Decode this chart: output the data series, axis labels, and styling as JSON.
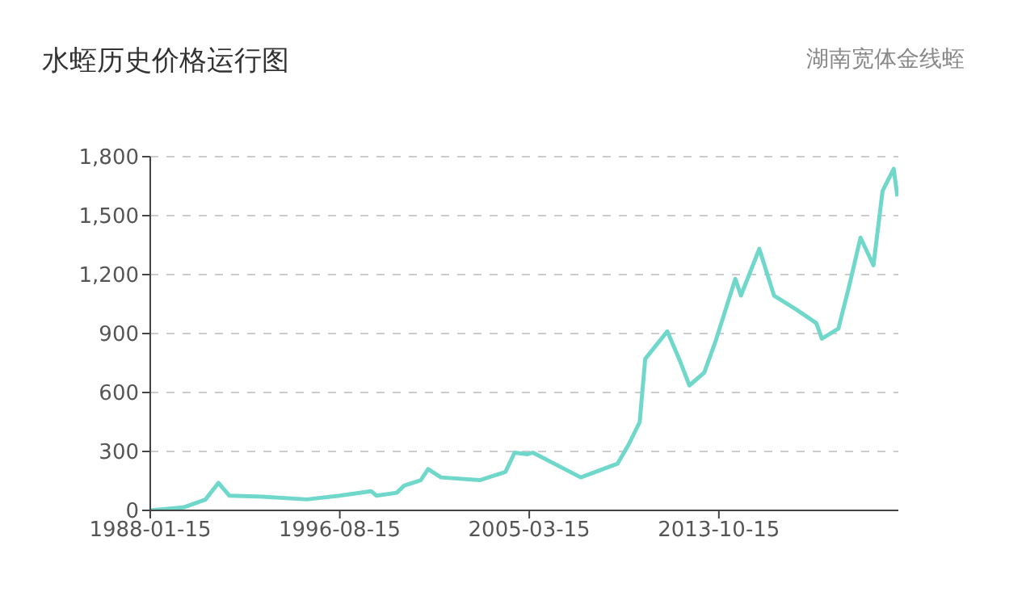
{
  "chart_data": {
    "type": "line",
    "title": "水蛭历史价格运行图",
    "subtitle": "湖南宽体金线蛭",
    "x": [
      "1988-01-15",
      "1989-07",
      "1990-07",
      "1991-02",
      "1991-08",
      "1993-02",
      "1995-02",
      "1996-08",
      "1998-01",
      "1998-04",
      "1999-03",
      "1999-07",
      "2000-04",
      "2000-08",
      "2001-03",
      "2002-12",
      "2004-02",
      "2004-07",
      "2005-02",
      "2005-05",
      "2007-07",
      "2009-03",
      "2009-09",
      "2010-03",
      "2010-06",
      "2011-06",
      "2012-01",
      "2012-06",
      "2013-02",
      "2013-08",
      "2014-07",
      "2014-10",
      "2015-08",
      "2016-04",
      "2017-04",
      "2018-03",
      "2018-06",
      "2019-03",
      "2019-09",
      "2020-03",
      "2020-10",
      "2021-03",
      "2021-09",
      "2021-11"
    ],
    "series": [
      {
        "color": "#6fd8cb",
        "values": [
          0,
          15,
          55,
          140,
          75,
          70,
          56,
          75,
          98,
          75,
          90,
          126,
          154,
          210,
          168,
          154,
          196,
          294,
          286,
          294,
          168,
          238,
          336,
          449,
          771,
          911,
          757,
          636,
          701,
          855,
          1178,
          1093,
          1331,
          1093,
          1023,
          953,
          874,
          925,
          1149,
          1388,
          1247,
          1626,
          1738,
          1598
        ]
      }
    ],
    "xlim": [
      "1988-01-15",
      "2021-12-01"
    ],
    "xticks": [
      "1988-01-15",
      "1996-08-15",
      "2005-03-15",
      "2013-10-15"
    ],
    "ylim": [
      0,
      1800
    ],
    "yticks": [
      {
        "value": 0,
        "label": "0"
      },
      {
        "value": 300,
        "label": "300"
      },
      {
        "value": 600,
        "label": "600"
      },
      {
        "value": 900,
        "label": "900"
      },
      {
        "value": 1200,
        "label": "1,200"
      },
      {
        "value": 1500,
        "label": "1,500"
      },
      {
        "value": 1800,
        "label": "1,800"
      }
    ],
    "grid": "y",
    "marker": "none",
    "line_style": "solid",
    "legend": false
  }
}
